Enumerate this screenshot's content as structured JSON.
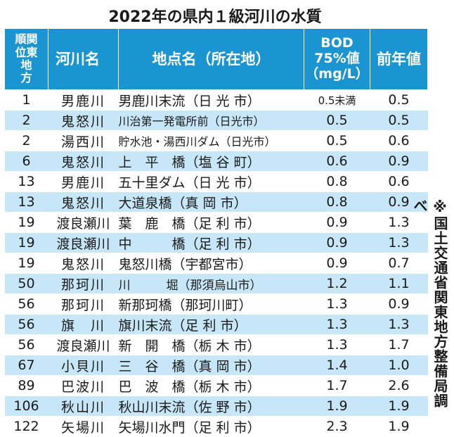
{
  "title": "2022年の県内１級河川の水質",
  "table": {
    "headers": {
      "rank_lines": [
        "順関",
        "位東",
        "地",
        "方"
      ],
      "river": "河川名",
      "site": "地点名（所在地）",
      "bod_lines": [
        "BOD",
        "75%値",
        "（mg/L）"
      ],
      "prev": "前年値"
    },
    "rows": [
      {
        "rank": "1",
        "river": "男鹿川",
        "site": "男鹿川末流（日 光 市）",
        "bod": "0.5未満",
        "prev": "0.5"
      },
      {
        "rank": "2",
        "river": "鬼怒川",
        "site": "川治第一発電所前（日光市）",
        "bod": "0.5",
        "prev": "0.5"
      },
      {
        "rank": "2",
        "river": "湯西川",
        "site": "貯水池・湯西川ダム（日光市）",
        "bod": "0.5",
        "prev": "0.6"
      },
      {
        "rank": "6",
        "river": "鬼怒川",
        "site": "上　平　橋（塩 谷 町）",
        "bod": "0.6",
        "prev": "0.9"
      },
      {
        "rank": "13",
        "river": "男鹿川",
        "site": "五十里ダム（日 光 市）",
        "bod": "0.8",
        "prev": "0.6"
      },
      {
        "rank": "13",
        "river": "鬼怒川",
        "site": "大道泉橋（真 岡 市）",
        "bod": "0.8",
        "prev": "0.9"
      },
      {
        "rank": "19",
        "river": "渡良瀬川",
        "site": "葉　鹿　橋（足 利 市）",
        "bod": "0.9",
        "prev": "1.3"
      },
      {
        "rank": "19",
        "river": "渡良瀬川",
        "site": "中　　　橋（足 利 市）",
        "bod": "0.9",
        "prev": "1.3"
      },
      {
        "rank": "19",
        "river": "鬼怒川",
        "site": "鬼怒川橋（宇都宮市）",
        "bod": "0.9",
        "prev": "0.7"
      },
      {
        "rank": "50",
        "river": "那珂川",
        "site": "川　　　堀（那須烏山市）",
        "bod": "1.2",
        "prev": "1.1"
      },
      {
        "rank": "56",
        "river": "那珂川",
        "site": "新那珂橋（那珂川町）",
        "bod": "1.3",
        "prev": "0.9"
      },
      {
        "rank": "56",
        "river": "旗　川",
        "site": "旗川末流（足 利 市）",
        "bod": "1.3",
        "prev": "1.3"
      },
      {
        "rank": "56",
        "river": "渡良瀬川",
        "site": "新　開　橋（栃 木 市）",
        "bod": "1.3",
        "prev": "1.7"
      },
      {
        "rank": "67",
        "river": "小貝川",
        "site": "三　谷　橋（真 岡 市）",
        "bod": "1.4",
        "prev": "1.0"
      },
      {
        "rank": "89",
        "river": "巴波川",
        "site": "巴　波　橋（栃 木 市）",
        "bod": "1.7",
        "prev": "2.6"
      },
      {
        "rank": "106",
        "river": "秋山川",
        "site": "秋山川末流（佐 野 市）",
        "bod": "1.9",
        "prev": "1.9"
      },
      {
        "rank": "122",
        "river": "矢場川",
        "site": "矢場川水門（足 利 市）",
        "bod": "2.3",
        "prev": "1.9"
      }
    ]
  },
  "source_note": "※国土交通省関東地方整備局調べ",
  "colors": {
    "header_bg": "#1a95d2",
    "stripe_bg": "#c7e6f7"
  }
}
